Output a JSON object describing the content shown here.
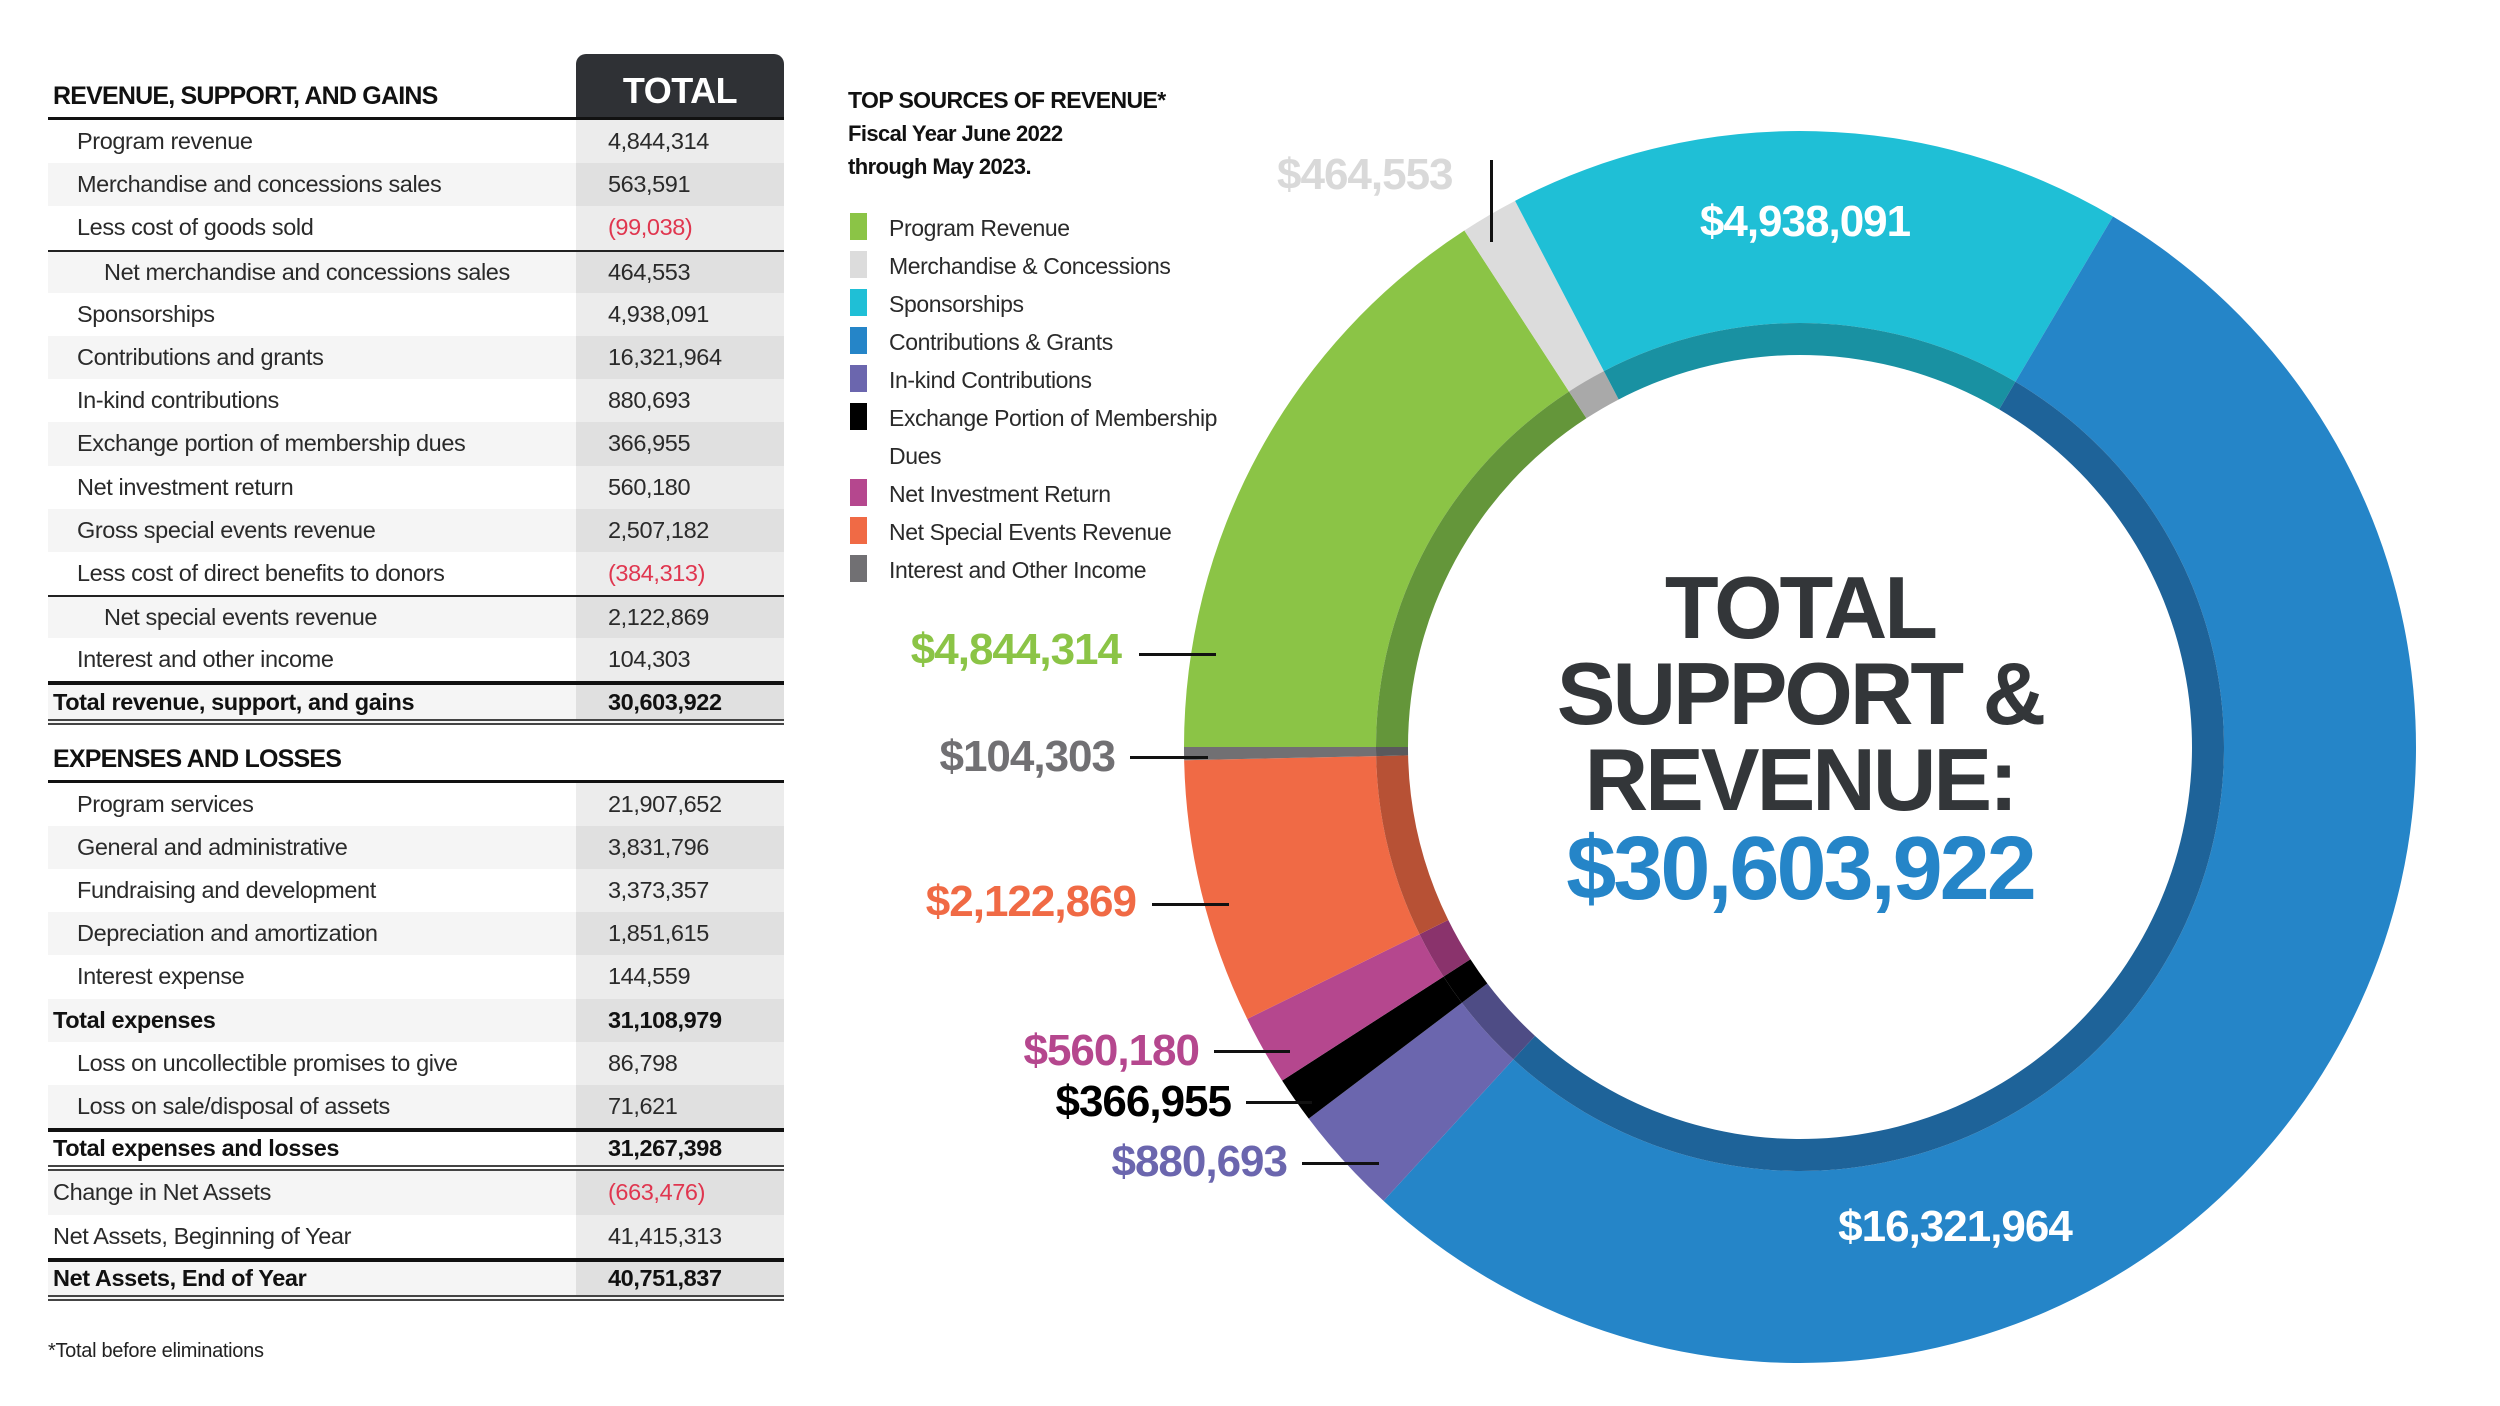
{
  "table": {
    "revenue_header": "REVENUE, SUPPORT, AND GAINS",
    "total_header": "TOTAL",
    "revenue_rows": [
      {
        "label": "Program revenue",
        "value": "4,844,314",
        "kind": "item"
      },
      {
        "label": "Merchandise and concessions sales",
        "value": "563,591",
        "kind": "item"
      },
      {
        "label": "Less cost of goods sold",
        "value": "(99,038)",
        "kind": "item",
        "negative": true
      },
      {
        "label": "Net merchandise and concessions sales",
        "value": "464,553",
        "kind": "sub",
        "rule": "rule-top"
      },
      {
        "label": "Sponsorships",
        "value": "4,938,091",
        "kind": "item"
      },
      {
        "label": "Contributions and grants",
        "value": "16,321,964",
        "kind": "item"
      },
      {
        "label": "In-kind contributions",
        "value": "880,693",
        "kind": "item"
      },
      {
        "label": "Exchange portion of membership dues",
        "value": "366,955",
        "kind": "item"
      },
      {
        "label": "Net investment return",
        "value": "560,180",
        "kind": "item"
      },
      {
        "label": "Gross special events revenue",
        "value": "2,507,182",
        "kind": "item"
      },
      {
        "label": "Less cost of direct benefits to donors",
        "value": "(384,313)",
        "kind": "item",
        "negative": true
      },
      {
        "label": "Net special events revenue",
        "value": "2,122,869",
        "kind": "sub",
        "rule": "rule-top"
      },
      {
        "label": "Interest and other income",
        "value": "104,303",
        "kind": "item"
      },
      {
        "label": "Total revenue, support, and gains",
        "value": "30,603,922",
        "kind": "bold",
        "rule": "thick-top double-bottom"
      }
    ],
    "expenses_header": "EXPENSES AND LOSSES",
    "expense_rows": [
      {
        "label": "Program services",
        "value": "21,907,652",
        "kind": "item"
      },
      {
        "label": "General and administrative",
        "value": "3,831,796",
        "kind": "item"
      },
      {
        "label": "Fundraising and development",
        "value": "3,373,357",
        "kind": "item"
      },
      {
        "label": "Depreciation and amortization",
        "value": "1,851,615",
        "kind": "item"
      },
      {
        "label": "Interest expense",
        "value": "144,559",
        "kind": "item"
      },
      {
        "label": "Total expenses",
        "value": "31,108,979",
        "kind": "bold"
      },
      {
        "label": "Loss on uncollectible promises to give",
        "value": "86,798",
        "kind": "item"
      },
      {
        "label": "Loss on sale/disposal of assets",
        "value": "71,621",
        "kind": "item"
      },
      {
        "label": "Total expenses and losses",
        "value": "31,267,398",
        "kind": "bold",
        "rule": "thick-top double-bottom"
      },
      {
        "label": "Change in Net Assets",
        "value": "(663,476)",
        "kind": "plain",
        "negative": true
      },
      {
        "label": "Net Assets, Beginning of Year",
        "value": "41,415,313",
        "kind": "plain"
      },
      {
        "label": "Net Assets, End of Year",
        "value": "40,751,837",
        "kind": "bold",
        "rule": "thick-top double-bottom"
      }
    ],
    "footnote": "*Total before eliminations"
  },
  "chart_data": {
    "type": "pie",
    "variant": "donut",
    "title": "TOP SOURCES OF REVENUE*",
    "subtitle_line1": "Fiscal Year June 2022",
    "subtitle_line2": "through May 2023.",
    "center_label": [
      "TOTAL",
      "SUPPORT &",
      "REVENUE:"
    ],
    "center_value": "$30,603,922",
    "total": 30603922,
    "start_angle_deg": 270,
    "direction": "clockwise",
    "legend_placement": "left",
    "slices": [
      {
        "name": "Program Revenue",
        "value": 4844314,
        "label": "$4,844,314",
        "color": "#8bc446",
        "dark": "#64963a",
        "label_color": "#8bc446"
      },
      {
        "name": "Merchandise & Concessions",
        "value": 464553,
        "label": "$464,553",
        "color": "#dcdcdc",
        "dark": "#a9a9a9",
        "label_color": "#d9d9d9"
      },
      {
        "name": "Sponsorships",
        "value": 4938091,
        "label": "$4,938,091",
        "color": "#1fbfd6",
        "dark": "#1991a2",
        "label_color": "#ffffff"
      },
      {
        "name": "Contributions & Grants",
        "value": 16321964,
        "label": "$16,321,964",
        "color": "#2585c8",
        "dark": "#1e6399",
        "label_color": "#ffffff"
      },
      {
        "name": "In-kind Contributions",
        "value": 880693,
        "label": "$880,693",
        "color": "#6b66ae",
        "dark": "#4e4c85",
        "label_color": "#6b66ae"
      },
      {
        "name": "Exchange Portion of Membership Dues",
        "value": 366955,
        "label": "$366,955",
        "color": "#000000",
        "dark": "#000000",
        "label_color": "#000000"
      },
      {
        "name": "Net Investment Return",
        "value": 560180,
        "label": "$560,180",
        "color": "#b5478e",
        "dark": "#8a336c",
        "label_color": "#b5478e"
      },
      {
        "name": "Net Special Events Revenue",
        "value": 2122869,
        "label": "$2,122,869",
        "color": "#f06a45",
        "dark": "#b75135",
        "label_color": "#f06a45"
      },
      {
        "name": "Interest and Other Income",
        "value": 104303,
        "label": "$104,303",
        "color": "#717073",
        "dark": "#5a595c",
        "label_color": "#717073"
      }
    ]
  }
}
